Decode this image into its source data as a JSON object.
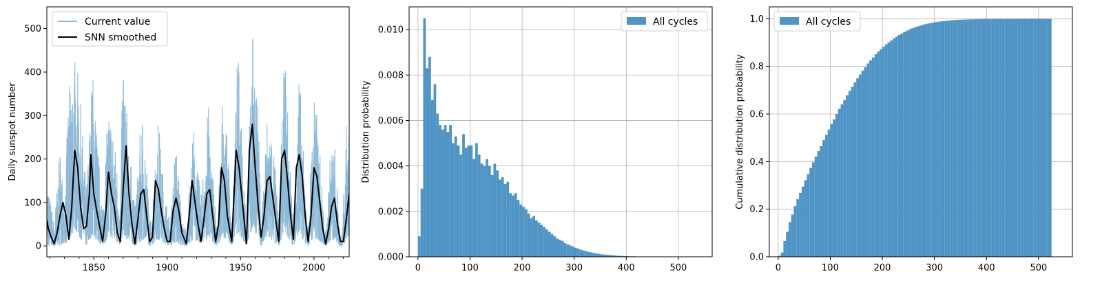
{
  "colors": {
    "bar": "#4f94c4",
    "current_line": "#8fbad8",
    "smoothed_line": "#000000",
    "grid": "#b0b0b0"
  },
  "chart_data": [
    {
      "type": "line",
      "title": "",
      "xlabel": "",
      "ylabel": "Daily sunspot number",
      "xlim": [
        1818,
        2024
      ],
      "ylim": [
        -25,
        550
      ],
      "xticks": [
        1850,
        1900,
        1950,
        2000
      ],
      "yticks": [
        0,
        100,
        200,
        300,
        400,
        500
      ],
      "grid": false,
      "legend_position": "top-left",
      "series": [
        {
          "name": "Current value",
          "style": "light-blue dense daily line",
          "daily_envelope": {
            "x": [
              1818,
              1823,
              1827,
              1830,
              1833,
              1837,
              1840,
              1845,
              1849,
              1853,
              1856,
              1860,
              1864,
              1868,
              1870,
              1873,
              1878,
              1882,
              1884,
              1888,
              1889,
              1894,
              1898,
              1902,
              1906,
              1910,
              1913,
              1918,
              1923,
              1928,
              1930,
              1934,
              1938,
              1942,
              1944,
              1948,
              1951,
              1954,
              1958,
              1962,
              1964,
              1968,
              1972,
              1976,
              1980,
              1984,
              1986,
              1990,
              1993,
              1996,
              2000,
              2004,
              2008,
              2011,
              2014,
              2017,
              2019,
              2022,
              2024
            ],
            "max": [
              160,
              50,
              230,
              110,
              360,
              440,
              380,
              130,
              420,
              220,
              90,
              330,
              250,
              110,
              470,
              280,
              90,
              280,
              320,
              60,
              60,
              300,
              130,
              55,
              250,
              60,
              40,
              280,
              110,
              330,
              220,
              40,
              360,
              200,
              40,
              460,
              300,
              60,
              505,
              320,
              60,
              300,
              260,
              60,
              460,
              180,
              50,
              420,
              200,
              40,
              380,
              220,
              20,
              210,
              250,
              60,
              15,
              300,
              250
            ],
            "min": [
              0,
              0,
              0,
              5,
              10,
              40,
              20,
              0,
              25,
              10,
              0,
              20,
              15,
              0,
              30,
              10,
              0,
              10,
              15,
              0,
              0,
              15,
              5,
              0,
              10,
              0,
              0,
              15,
              5,
              20,
              10,
              0,
              20,
              10,
              0,
              30,
              15,
              0,
              40,
              20,
              0,
              20,
              10,
              0,
              30,
              10,
              0,
              30,
              10,
              0,
              20,
              10,
              0,
              10,
              15,
              0,
              0,
              10,
              20
            ]
          }
        },
        {
          "name": "SNN smoothed",
          "style": "black line",
          "x": [
            1818,
            1819,
            1821,
            1823,
            1825,
            1827,
            1829,
            1831,
            1833,
            1835,
            1837,
            1839,
            1841,
            1843,
            1845,
            1847,
            1848,
            1850,
            1852,
            1854,
            1856,
            1858,
            1860,
            1862,
            1864,
            1866,
            1868,
            1870,
            1872,
            1874,
            1876,
            1878,
            1880,
            1882,
            1884,
            1886,
            1888,
            1890,
            1892,
            1894,
            1896,
            1898,
            1900,
            1902,
            1904,
            1906,
            1908,
            1910,
            1913,
            1915,
            1917,
            1919,
            1921,
            1923,
            1925,
            1927,
            1929,
            1931,
            1933,
            1935,
            1937,
            1939,
            1941,
            1944,
            1946,
            1947,
            1949,
            1951,
            1953,
            1954,
            1956,
            1958,
            1960,
            1962,
            1964,
            1966,
            1968,
            1970,
            1972,
            1974,
            1976,
            1978,
            1980,
            1982,
            1984,
            1986,
            1988,
            1990,
            1992,
            1994,
            1996,
            1998,
            2000,
            2002,
            2004,
            2006,
            2008,
            2010,
            2012,
            2014,
            2016,
            2018,
            2020,
            2022,
            2024
          ],
          "y": [
            60,
            40,
            20,
            5,
            30,
            70,
            100,
            70,
            15,
            90,
            220,
            180,
            90,
            40,
            45,
            120,
            210,
            120,
            80,
            45,
            10,
            70,
            170,
            120,
            90,
            30,
            10,
            130,
            230,
            120,
            50,
            5,
            60,
            120,
            130,
            70,
            10,
            20,
            150,
            130,
            80,
            40,
            10,
            10,
            80,
            110,
            80,
            30,
            5,
            70,
            150,
            100,
            50,
            10,
            60,
            120,
            130,
            70,
            10,
            50,
            180,
            150,
            70,
            10,
            150,
            220,
            180,
            110,
            40,
            5,
            220,
            280,
            180,
            90,
            20,
            70,
            150,
            160,
            110,
            60,
            10,
            200,
            220,
            150,
            70,
            15,
            180,
            210,
            160,
            70,
            10,
            70,
            180,
            160,
            100,
            40,
            5,
            40,
            90,
            110,
            50,
            10,
            10,
            60,
            120
          ]
        }
      ]
    },
    {
      "type": "bar",
      "title": "",
      "xlabel": "",
      "ylabel": "Distribution probability",
      "xlim": [
        -17,
        565
      ],
      "ylim": [
        0,
        0.011
      ],
      "xticks": [
        0,
        100,
        200,
        300,
        400,
        500
      ],
      "yticks": [
        "0.000",
        "0.002",
        "0.004",
        "0.006",
        "0.008",
        "0.010"
      ],
      "grid": true,
      "legend_position": "top-right",
      "series": [
        {
          "name": "All cycles",
          "bin_start": 0,
          "bin_width": 5,
          "values": [
            0.0009,
            0.003,
            0.0105,
            0.0083,
            0.0088,
            0.0069,
            0.0076,
            0.0063,
            0.0058,
            0.0056,
            0.0058,
            0.0055,
            0.0058,
            0.005,
            0.0053,
            0.0049,
            0.0045,
            0.0054,
            0.0048,
            0.0049,
            0.0049,
            0.0043,
            0.005,
            0.0045,
            0.0041,
            0.004,
            0.0043,
            0.004,
            0.0036,
            0.0041,
            0.0038,
            0.0034,
            0.0035,
            0.0032,
            0.0033,
            0.0028,
            0.0027,
            0.0028,
            0.0025,
            0.0023,
            0.0022,
            0.0021,
            0.0019,
            0.0017,
            0.0018,
            0.0016,
            0.0015,
            0.0014,
            0.0013,
            0.0012,
            0.0011,
            0.001,
            0.0009,
            0.0008,
            0.00075,
            0.0007,
            0.0006,
            0.00055,
            0.0005,
            0.00045,
            0.0004,
            0.00036,
            0.00032,
            0.00028,
            0.00025,
            0.00022,
            0.0002,
            0.00017,
            0.00015,
            0.00013,
            0.00011,
            0.0001,
            9e-05,
            8e-05,
            7e-05,
            6e-05,
            5e-05,
            4e-05,
            4e-05,
            3e-05,
            3e-05,
            2e-05,
            2e-05,
            2e-05,
            1e-05,
            1e-05,
            1e-05,
            1e-05,
            1e-05,
            1e-05,
            1e-05,
            1e-05,
            1e-05,
            1e-05,
            1e-05,
            1e-05,
            1e-05,
            1e-05,
            1e-05,
            1e-05,
            1e-05,
            1e-05,
            1e-05,
            1e-05,
            1e-05
          ]
        }
      ]
    },
    {
      "type": "bar",
      "title": "",
      "xlabel": "",
      "ylabel": "Cumulative distribution probability",
      "xlim": [
        -17,
        565
      ],
      "ylim": [
        0,
        1.05
      ],
      "xticks": [
        0,
        100,
        200,
        300,
        400,
        500
      ],
      "yticks": [
        "0.0",
        "0.2",
        "0.4",
        "0.6",
        "0.8",
        "1.0"
      ],
      "grid": true,
      "legend_position": "top-left",
      "series": [
        {
          "name": "All cycles",
          "cumulative": true,
          "bin_start": 0,
          "bin_width": 5
        }
      ]
    }
  ]
}
